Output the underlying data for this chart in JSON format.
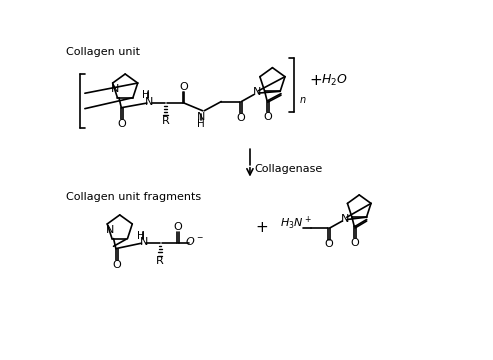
{
  "bg_color": "#ffffff",
  "title_top": "Collagen unit",
  "title_bottom": "Collagen unit fragments",
  "enzyme_label": "Collagenase",
  "figsize": [
    4.93,
    3.6
  ],
  "dpi": 100
}
